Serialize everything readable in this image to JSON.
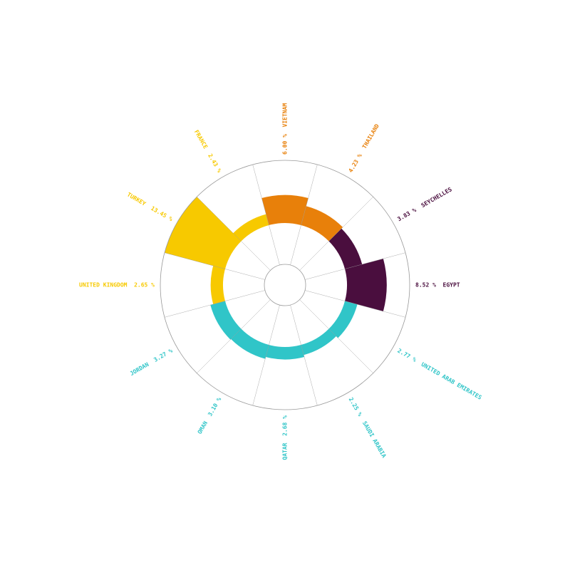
{
  "chart_data": {
    "type": "radial-bar",
    "unit": "%",
    "ylim": [
      0,
      13.45
    ],
    "grid": true,
    "categories": [
      "VIETNAM",
      "THAILAND",
      "SEYCHELLES",
      "EGYPT",
      "UNITED ARAB EMIRATES",
      "SAUDI ARABIA",
      "QATAR",
      "OMAN",
      "JORDAN",
      "UNITED KINGDOM",
      "TURKEY",
      "FRANCE"
    ],
    "values": [
      6.0,
      4.23,
      3.83,
      8.52,
      2.77,
      2.25,
      2.68,
      3.1,
      3.27,
      2.65,
      13.45,
      2.43
    ],
    "value_labels": [
      "6.00 %",
      "4.23 %",
      "3.83 %",
      "8.52 %",
      "2.77 %",
      "2.25 %",
      "2.68 %",
      "3.10 %",
      "3.27 %",
      "2.65 %",
      "13.45 %",
      "2.43 %"
    ],
    "colors": [
      "#e8800a",
      "#e8800a",
      "#4a0e3e",
      "#4a0e3e",
      "#30c5c8",
      "#30c5c8",
      "#30c5c8",
      "#30c5c8",
      "#30c5c8",
      "#f7c900",
      "#f7c900",
      "#f7c900"
    ]
  }
}
